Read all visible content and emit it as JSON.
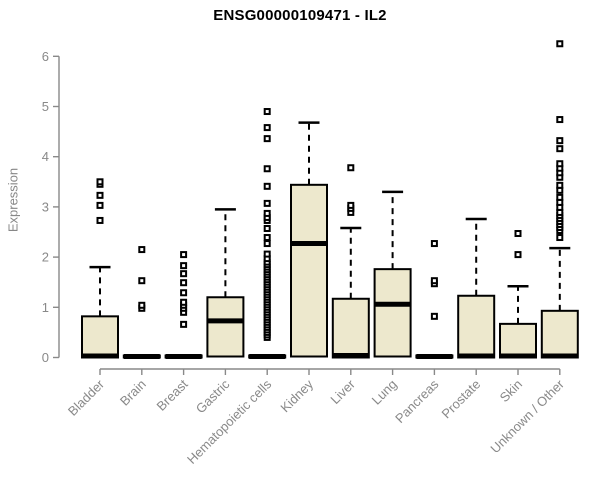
{
  "title": "ENSG00000109471 - IL2",
  "colors": {
    "background": "#ffffff",
    "box_fill": "#EDE8CD",
    "box_border": "#000000",
    "median": "#000000",
    "whisker": "#000000",
    "outlier_border": "#000000",
    "outlier_fill": "#ffffff",
    "axis": "#898989",
    "tick_label": "#898989",
    "title_color": "#000000"
  },
  "chart_data": {
    "type": "boxplot",
    "title": "ENSG00000109471 - IL2",
    "xlabel": "",
    "ylabel": "Expression",
    "ylim": [
      0,
      6.4
    ],
    "yticks": [
      0,
      1,
      2,
      3,
      4,
      5,
      6
    ],
    "grid": false,
    "legend": false,
    "categories": [
      "Bladder",
      "Brain",
      "Breast",
      "Gastric",
      "Hematopoietic cells",
      "Kidney",
      "Liver",
      "Lung",
      "Pancreas",
      "Prostate",
      "Skin",
      "Unknown / Other"
    ],
    "series": [
      {
        "category": "Bladder",
        "q1": 0,
        "median": 0.03,
        "q3": 0.82,
        "whisker_low": 0,
        "whisker_high": 1.8,
        "outliers": [
          2.73,
          3.03,
          3.23,
          3.45,
          3.5
        ]
      },
      {
        "category": "Brain",
        "q1": 0,
        "median": 0.02,
        "q3": 0.04,
        "whisker_low": 0,
        "whisker_high": 0.04,
        "outliers": [
          0.98,
          1.04,
          1.53,
          2.15
        ]
      },
      {
        "category": "Breast",
        "q1": 0,
        "median": 0.02,
        "q3": 0.04,
        "whisker_low": 0,
        "whisker_high": 0.04,
        "outliers": [
          0.66,
          0.9,
          0.98,
          1.04,
          1.1,
          1.29,
          1.49,
          1.67,
          1.83,
          2.05
        ]
      },
      {
        "category": "Gastric",
        "q1": 0.02,
        "median": 0.73,
        "q3": 1.2,
        "whisker_low": 0,
        "whisker_high": 2.95,
        "outliers": []
      },
      {
        "category": "Hematopoietic cells",
        "q1": 0,
        "median": 0.02,
        "q3": 0.04,
        "whisker_low": 0,
        "whisker_high": 0.04,
        "outliers": [
          0.4,
          0.45,
          0.5,
          0.55,
          0.6,
          0.65,
          0.7,
          0.75,
          0.8,
          0.85,
          0.9,
          0.95,
          1.0,
          1.05,
          1.1,
          1.15,
          1.2,
          1.25,
          1.3,
          1.35,
          1.4,
          1.45,
          1.5,
          1.55,
          1.6,
          1.65,
          1.7,
          1.75,
          1.8,
          1.85,
          1.9,
          1.97,
          2.06,
          2.27,
          2.39,
          2.57,
          2.73,
          2.79,
          2.87,
          3.07,
          3.41,
          3.76,
          4.36,
          4.58,
          4.9
        ]
      },
      {
        "category": "Kidney",
        "q1": 0.02,
        "median": 2.27,
        "q3": 3.44,
        "whisker_low": 0,
        "whisker_high": 4.68,
        "outliers": []
      },
      {
        "category": "Liver",
        "q1": 0,
        "median": 0.04,
        "q3": 1.17,
        "whisker_low": 0,
        "whisker_high": 2.58,
        "outliers": [
          2.89,
          2.97,
          3.03,
          3.78
        ]
      },
      {
        "category": "Lung",
        "q1": 0.02,
        "median": 1.06,
        "q3": 1.76,
        "whisker_low": 0,
        "whisker_high": 3.3,
        "outliers": []
      },
      {
        "category": "Pancreas",
        "q1": 0,
        "median": 0.02,
        "q3": 0.04,
        "whisker_low": 0,
        "whisker_high": 0.04,
        "outliers": [
          0.82,
          1.47,
          1.53,
          2.27
        ]
      },
      {
        "category": "Prostate",
        "q1": 0,
        "median": 0.03,
        "q3": 1.23,
        "whisker_low": 0,
        "whisker_high": 2.76,
        "outliers": []
      },
      {
        "category": "Skin",
        "q1": 0,
        "median": 0.03,
        "q3": 0.67,
        "whisker_low": 0,
        "whisker_high": 1.42,
        "outliers": [
          2.05,
          2.47
        ]
      },
      {
        "category": "Unknown / Other",
        "q1": 0,
        "median": 0.03,
        "q3": 0.93,
        "whisker_low": 0,
        "whisker_high": 2.18,
        "outliers": [
          2.39,
          2.53,
          2.59,
          2.65,
          2.71,
          2.77,
          2.83,
          2.89,
          2.99,
          3.09,
          3.19,
          3.33,
          3.43,
          3.59,
          3.68,
          3.77,
          3.86,
          4.16,
          4.32,
          4.74,
          6.25
        ]
      }
    ]
  }
}
